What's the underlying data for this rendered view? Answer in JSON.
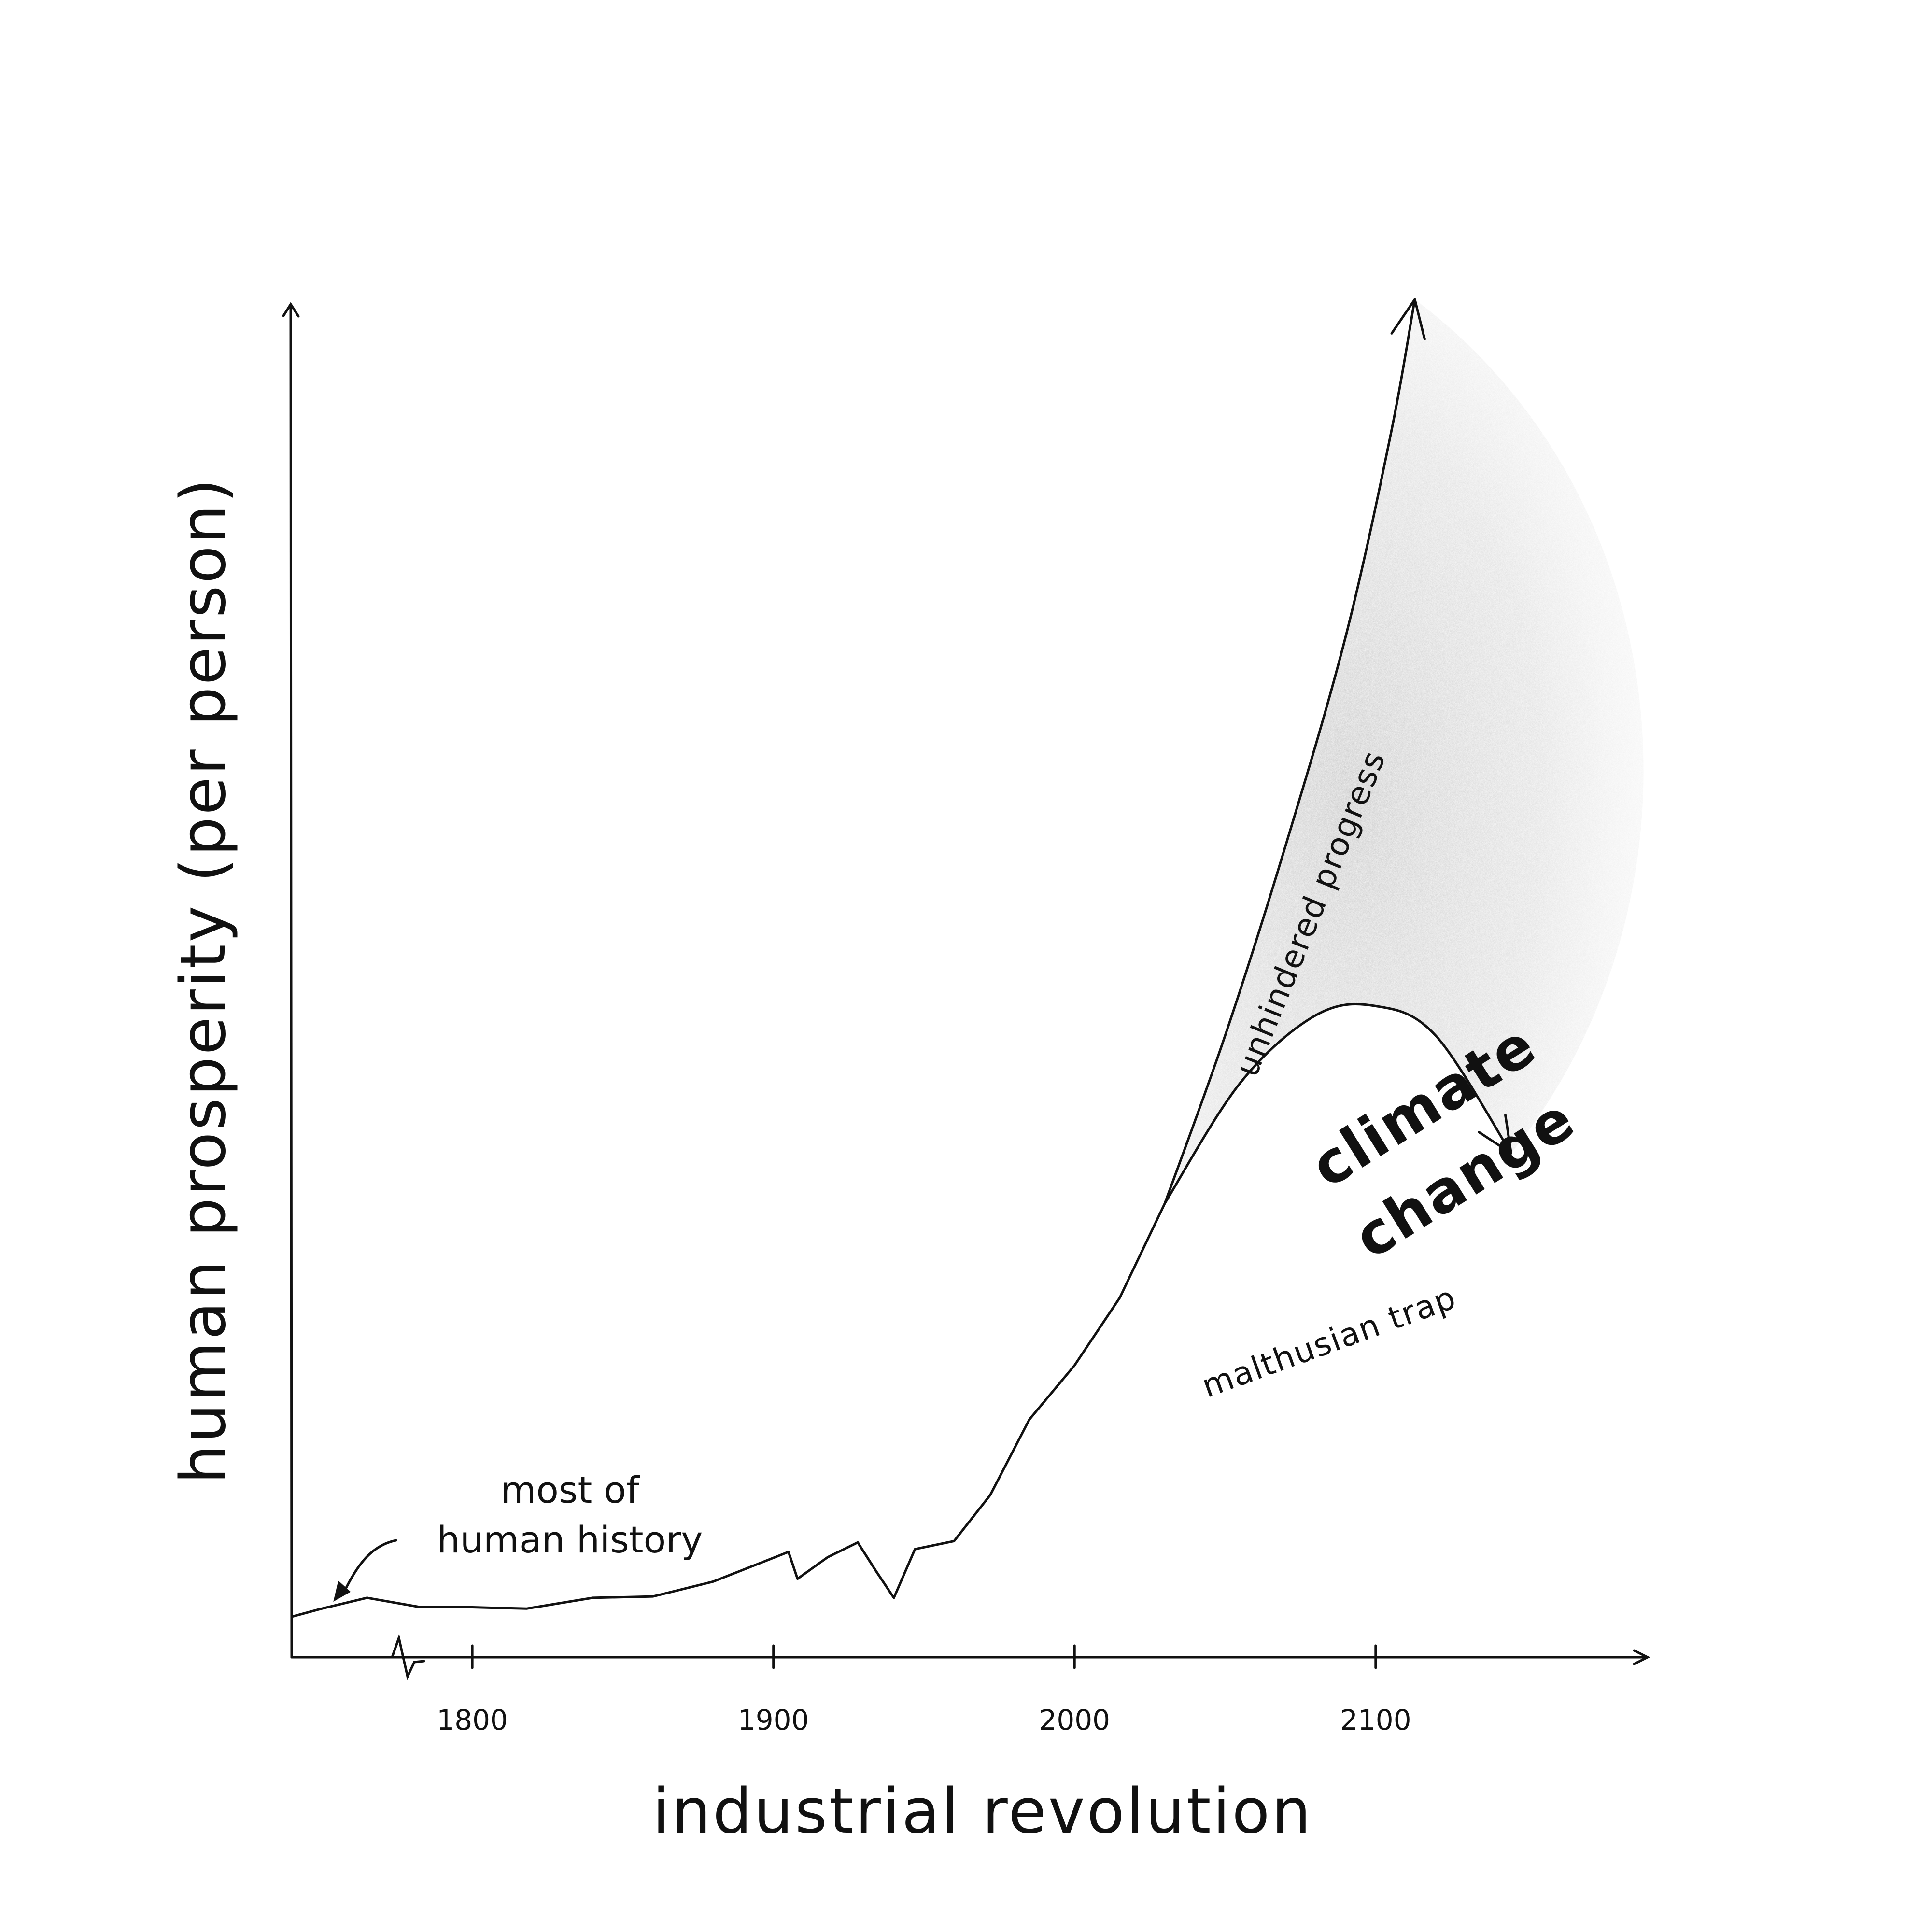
{
  "chart_data": {
    "type": "line",
    "title": "",
    "xlabel": "industrial revolution",
    "ylabel": "human prosperity (per person)",
    "x_ticks": [
      "1800",
      "1900",
      "2000",
      "2100"
    ],
    "xlim": [
      1740,
      2190
    ],
    "ylim": [
      0,
      100
    ],
    "grid": false,
    "legend": "none",
    "colors": {
      "ink": "#111111",
      "shade": "#b8b8b8"
    },
    "series": [
      {
        "key": "history",
        "x": [
          1740,
          1750,
          1765,
          1783,
          1800,
          1818,
          1840,
          1860,
          1880,
          1905,
          1908,
          1918,
          1928,
          1934,
          1940,
          1947,
          1960,
          1972,
          1985,
          2000,
          2015,
          2030
        ],
        "y": [
          3.0,
          3.6,
          4.4,
          3.7,
          3.7,
          3.6,
          4.4,
          4.5,
          5.6,
          7.8,
          5.8,
          7.4,
          8.5,
          6.4,
          4.4,
          8.0,
          8.6,
          12.0,
          17.6,
          21.6,
          26.6,
          33.6
        ]
      },
      {
        "key": "progress",
        "name": "unhindered progress",
        "x": [
          2030,
          2050,
          2070,
          2090,
          2105,
          2113
        ],
        "y": [
          33.6,
          46.0,
          60.0,
          75.5,
          90.5,
          100.5
        ]
      },
      {
        "key": "trap",
        "name": "malthusian trap",
        "x": [
          2030,
          2055,
          2080,
          2100,
          2120,
          2145
        ],
        "y": [
          33.6,
          42.5,
          47.5,
          48.2,
          46.0,
          37.3
        ]
      }
    ],
    "annotations": {
      "history_note": [
        "most of",
        "human history"
      ],
      "shaded_region": [
        "climate",
        "change"
      ]
    }
  }
}
